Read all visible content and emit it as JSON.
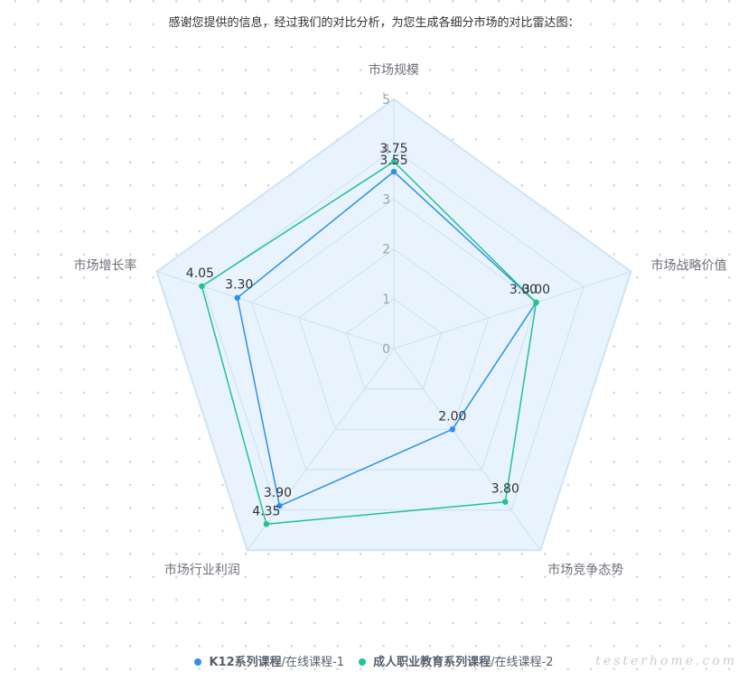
{
  "intro_text": "感谢您提供的信息，经过我们的对比分析，为您生成各细分市场的对比雷达图：",
  "watermark": "testerhome.com",
  "legend": [
    {
      "bold": "K12系列课程",
      "rest": "/在线课程-1",
      "color": "#2b8ff0"
    },
    {
      "bold": "成人职业教育系列课程",
      "rest": "/在线课程-2",
      "color": "#22c38a"
    }
  ],
  "chart_data": {
    "type": "radar",
    "indicators": [
      "市场规模",
      "市场战略价值",
      "市场竞争态势",
      "市场行业利润",
      "市场增长率"
    ],
    "max": 5,
    "ticks": [
      "0",
      "1",
      "2",
      "3",
      "4",
      "5"
    ],
    "series": [
      {
        "name": "K12系列课程/在线课程-1",
        "values": [
          3.55,
          3.0,
          2.0,
          3.9,
          3.3
        ],
        "labels": [
          "3.55",
          "3.00",
          "2.00",
          "3.90",
          "3.30"
        ],
        "color": "#2b8ff0"
      },
      {
        "name": "成人职业教育系列课程/在线课程-2",
        "values": [
          3.75,
          3.0,
          3.8,
          4.35,
          4.05
        ],
        "labels": [
          "3.75",
          "3.00",
          "3.80",
          "4.35",
          "4.05"
        ],
        "color": "#22c38a"
      }
    ],
    "legend_position": "bottom",
    "colors": {
      "area": "#e8f3fd",
      "grid": "#cfe3f5"
    }
  }
}
